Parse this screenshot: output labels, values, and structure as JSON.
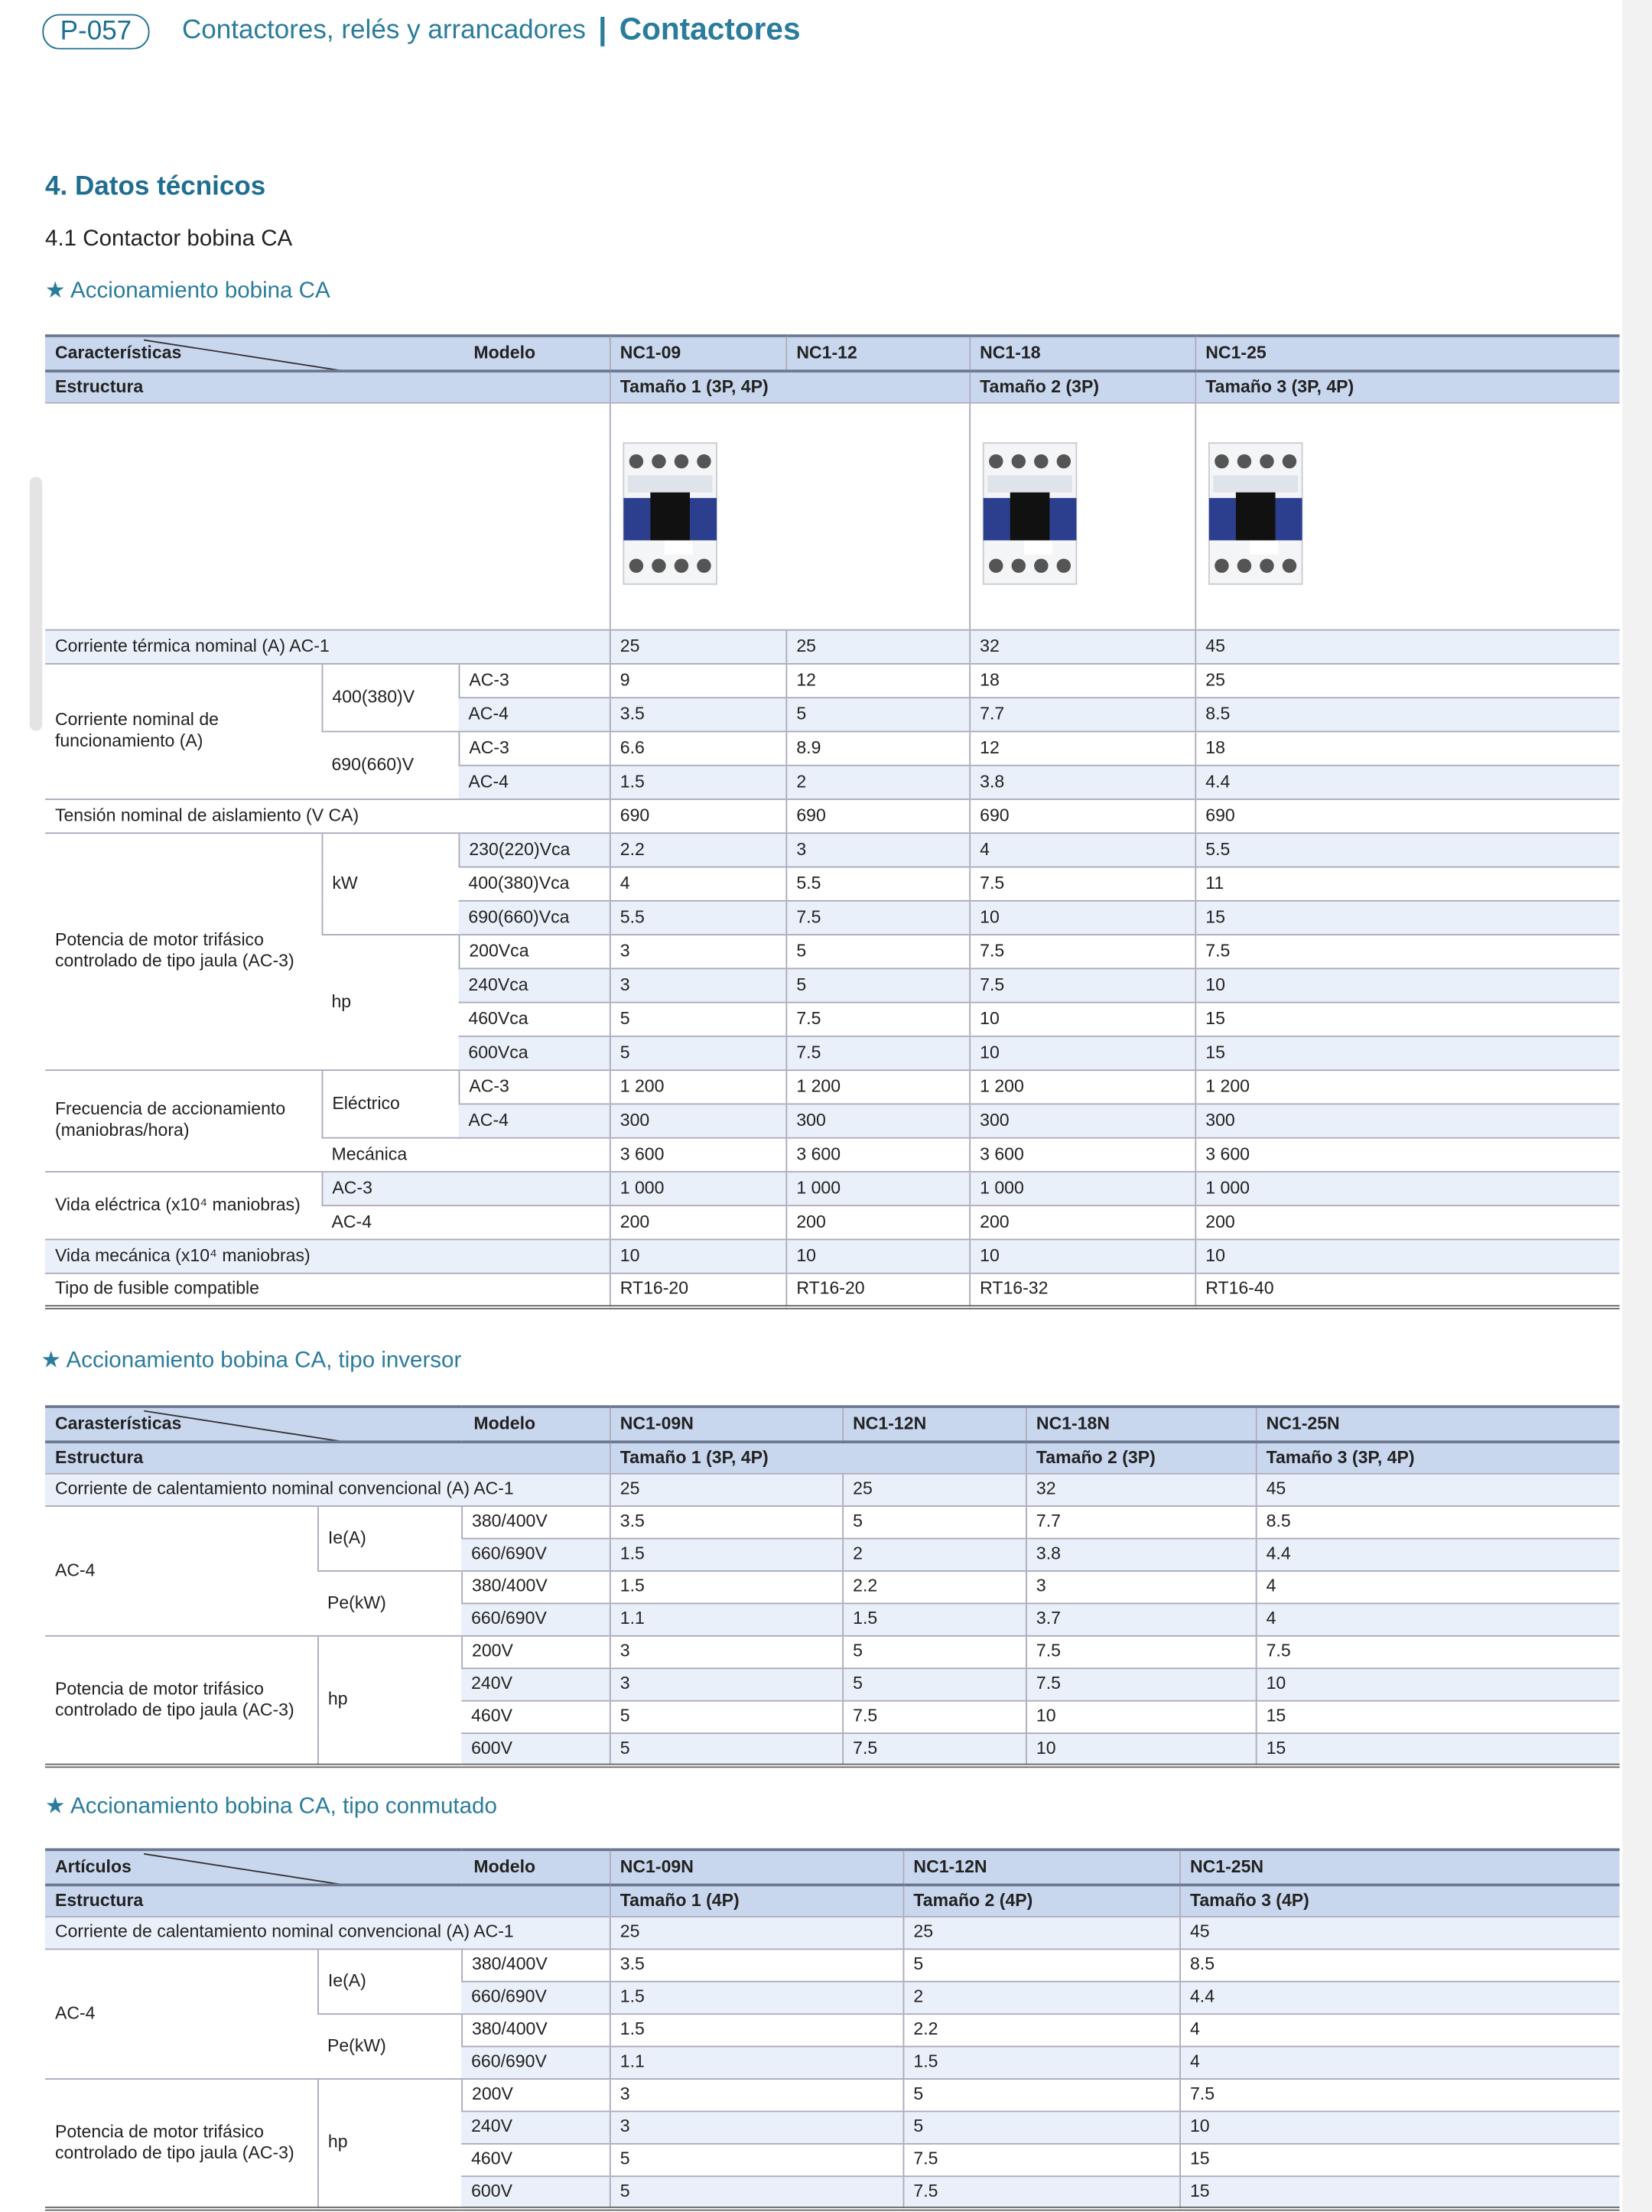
{
  "header": {
    "page": "P-057",
    "section": "Contactores, relés y arrancadores",
    "separator": "|",
    "subsection": "Contactores"
  },
  "title": "4. Datos técnicos",
  "subtitle": "4.1 Contactor bobina CA",
  "tables": [
    {
      "heading": "★ Accionamiento bobina CA",
      "corner_left": "Características",
      "corner_right": "Modelo",
      "models": [
        "NC1-09",
        "NC1-12",
        "NC1-18",
        "NC1-25"
      ],
      "structure_label": "Estructura",
      "sizes": [
        "Tamaño 1 (3P, 4P)",
        "Tamaño 2 (3P)",
        "Tamaño 3 (3P, 4P)"
      ],
      "rows": [
        [
          "Corriente térmica nominal (A) AC-1",
          "25",
          "25",
          "32",
          "45"
        ],
        [
          "Corriente nominal de funcionamiento (A)",
          "400(380)V",
          "AC-3",
          "9",
          "12",
          "18",
          "25"
        ],
        [
          "AC-4",
          "3.5",
          "5",
          "7.7",
          "8.5"
        ],
        [
          "690(660)V",
          "AC-3",
          "6.6",
          "8.9",
          "12",
          "18"
        ],
        [
          "AC-4",
          "1.5",
          "2",
          "3.8",
          "4.4"
        ],
        [
          "Tensión nominal de aislamiento (V CA)",
          "690",
          "690",
          "690",
          "690"
        ],
        [
          "Potencia de motor trifásico controlado de tipo jaula (AC-3)",
          "kW",
          "230(220)Vca",
          "2.2",
          "3",
          "4",
          "5.5"
        ],
        [
          "400(380)Vca",
          "4",
          "5.5",
          "7.5",
          "11"
        ],
        [
          "690(660)Vca",
          "5.5",
          "7.5",
          "10",
          "15"
        ],
        [
          "hp",
          "200Vca",
          "3",
          "5",
          "7.5",
          "7.5"
        ],
        [
          "240Vca",
          "3",
          "5",
          "7.5",
          "10"
        ],
        [
          "460Vca",
          "5",
          "7.5",
          "10",
          "15"
        ],
        [
          "600Vca",
          "5",
          "7.5",
          "10",
          "15"
        ],
        [
          "Frecuencia de accionamiento (maniobras/hora)",
          "Eléctrico",
          "AC-3",
          "1 200",
          "1 200",
          "1 200",
          "1 200"
        ],
        [
          "AC-4",
          "300",
          "300",
          "300",
          "300"
        ],
        [
          "Mecánica",
          "3 600",
          "3 600",
          "3 600",
          "3 600"
        ],
        [
          "Vida eléctrica (x10⁴ maniobras)",
          "AC-3",
          "1 000",
          "1 000",
          "1 000",
          "1 000"
        ],
        [
          "AC-4",
          "200",
          "200",
          "200",
          "200"
        ],
        [
          "Vida mecánica (x10⁴ maniobras)",
          "10",
          "10",
          "10",
          "10"
        ],
        [
          "Tipo de fusible compatible",
          "RT16-20",
          "RT16-20",
          "RT16-32",
          "RT16-40"
        ]
      ]
    },
    {
      "heading": "★ Accionamiento bobina CA, tipo inversor",
      "corner_left": "Carasterísticas",
      "corner_right": "Modelo",
      "models": [
        "NC1-09N",
        "NC1-12N",
        "NC1-18N",
        "NC1-25N"
      ],
      "structure_label": "Estructura",
      "sizes": [
        "Tamaño 1 (3P, 4P)",
        "Tamaño 2 (3P)",
        "Tamaño 3 (3P, 4P)"
      ],
      "rows": [
        [
          "Corriente de calentamiento nominal convencional (A) AC-1",
          "25",
          "25",
          "32",
          "45"
        ],
        [
          "AC-4",
          "Ie(A)",
          "380/400V",
          "3.5",
          "5",
          "7.7",
          "8.5"
        ],
        [
          "660/690V",
          "1.5",
          "2",
          "3.8",
          "4.4"
        ],
        [
          "Pe(kW)",
          "380/400V",
          "1.5",
          "2.2",
          "3",
          "4"
        ],
        [
          "660/690V",
          "1.1",
          "1.5",
          "3.7",
          "4"
        ],
        [
          "Potencia de motor trifásico controlado de tipo jaula (AC-3)",
          "hp",
          "200V",
          "3",
          "5",
          "7.5",
          "7.5"
        ],
        [
          "240V",
          "3",
          "5",
          "7.5",
          "10"
        ],
        [
          "460V",
          "5",
          "7.5",
          "10",
          "15"
        ],
        [
          "600V",
          "5",
          "7.5",
          "10",
          "15"
        ]
      ]
    },
    {
      "heading": "★ Accionamiento bobina CA, tipo conmutado",
      "corner_left": "Artículos",
      "corner_right": "Modelo",
      "models": [
        "NC1-09N",
        "NC1-12N",
        "NC1-25N"
      ],
      "structure_label": "Estructura",
      "sizes": [
        "Tamaño 1 (4P)",
        "Tamaño 2 (4P)",
        "Tamaño 3 (4P)"
      ],
      "rows": [
        [
          "Corriente de calentamiento nominal convencional (A) AC-1",
          "25",
          "25",
          "45"
        ],
        [
          "AC-4",
          "Ie(A)",
          "380/400V",
          "3.5",
          "5",
          "8.5"
        ],
        [
          "660/690V",
          "1.5",
          "2",
          "4.4"
        ],
        [
          "Pe(kW)",
          "380/400V",
          "1.5",
          "2.2",
          "4"
        ],
        [
          "660/690V",
          "1.1",
          "1.5",
          "4"
        ],
        [
          "Potencia de motor trifásico controlado de tipo jaula (AC-3)",
          "hp",
          "200V",
          "3",
          "5",
          "7.5"
        ],
        [
          "240V",
          "3",
          "5",
          "10"
        ],
        [
          "460V",
          "5",
          "7.5",
          "15"
        ],
        [
          "600V",
          "5",
          "7.5",
          "15"
        ]
      ]
    }
  ]
}
